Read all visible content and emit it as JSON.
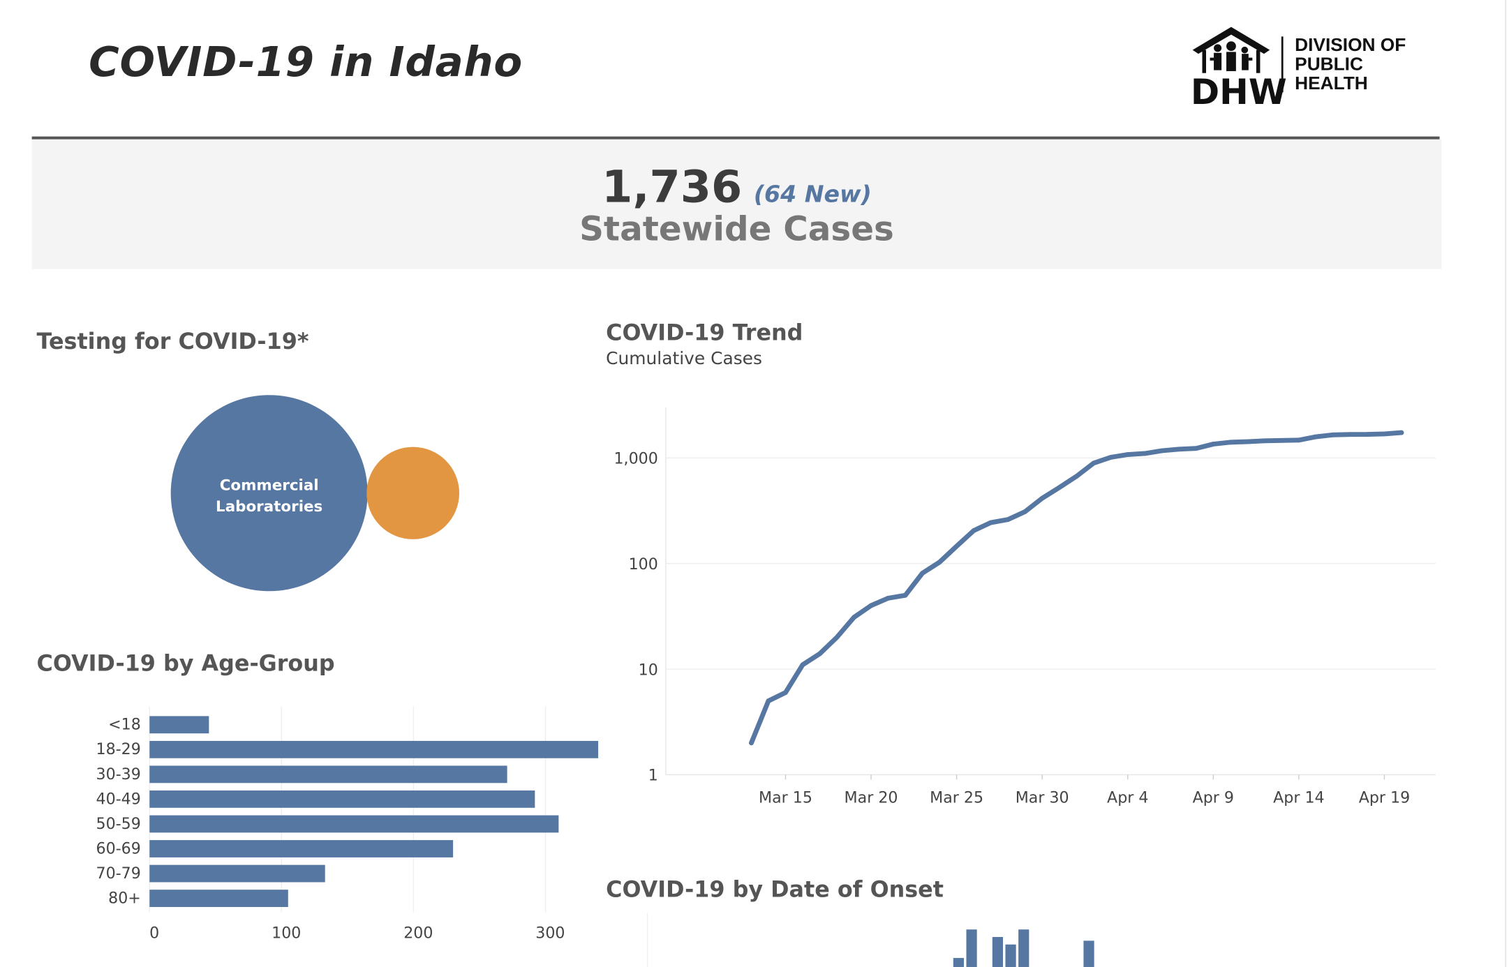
{
  "header": {
    "title": "COVID-19 in Idaho",
    "logo": {
      "initials": "DHW",
      "lines": [
        "DIVISION OF",
        "PUBLIC",
        "HEALTH"
      ],
      "icon": "house-with-people-icon"
    }
  },
  "summary": {
    "total_cases": "1,736",
    "new_cases": "(64 New)",
    "label": "Statewide Cases"
  },
  "testing": {
    "title": "Testing for COVID-19*",
    "bubble_label_lines": [
      "Commercial",
      "Laboratories"
    ],
    "colors": {
      "commercial": "#5677a2",
      "state": "#e39642"
    }
  },
  "trend": {
    "title": "COVID-19 Trend",
    "subtitle": "Cumulative Cases"
  },
  "onset": {
    "title": "COVID-19 by Date of Onset"
  },
  "age": {
    "title": "COVID-19 by Age-Group"
  },
  "chart_data": [
    {
      "type": "bar",
      "orientation": "horizontal",
      "title": "COVID-19 by Age-Group",
      "categories": [
        "<18",
        "18-29",
        "30-39",
        "40-49",
        "50-59",
        "60-69",
        "70-79",
        "80+"
      ],
      "values": [
        45,
        342,
        271,
        292,
        310,
        230,
        133,
        105
      ],
      "xlim": [
        0,
        340
      ],
      "xticks": [
        0,
        100,
        200,
        300
      ],
      "xtick_labels": [
        "0",
        "100",
        "200",
        "300"
      ],
      "color": "#5677a2",
      "grid": true
    },
    {
      "type": "line",
      "title": "COVID-19 Trend",
      "subtitle": "Cumulative Cases",
      "yscale": "log",
      "ylim": [
        1,
        3000
      ],
      "yticks": [
        1,
        10,
        100,
        1000
      ],
      "ytick_labels": [
        "1",
        "10",
        "100",
        "1,000"
      ],
      "xlim": [
        "2020-03-08",
        "2020-04-22"
      ],
      "xticks": [
        "2020-03-15",
        "2020-03-20",
        "2020-03-25",
        "2020-03-30",
        "2020-04-04",
        "2020-04-09",
        "2020-04-14",
        "2020-04-19"
      ],
      "xtick_labels": [
        "Mar 15",
        "Mar 20",
        "Mar 25",
        "Mar 30",
        "Apr 4",
        "Apr 9",
        "Apr 14",
        "Apr 19"
      ],
      "color": "#5677a2",
      "x": [
        "2020-03-13",
        "2020-03-14",
        "2020-03-15",
        "2020-03-16",
        "2020-03-17",
        "2020-03-18",
        "2020-03-19",
        "2020-03-20",
        "2020-03-21",
        "2020-03-22",
        "2020-03-23",
        "2020-03-24",
        "2020-03-25",
        "2020-03-26",
        "2020-03-27",
        "2020-03-28",
        "2020-03-29",
        "2020-03-30",
        "2020-03-31",
        "2020-04-01",
        "2020-04-02",
        "2020-04-03",
        "2020-04-04",
        "2020-04-05",
        "2020-04-06",
        "2020-04-07",
        "2020-04-08",
        "2020-04-09",
        "2020-04-10",
        "2020-04-11",
        "2020-04-12",
        "2020-04-13",
        "2020-04-14",
        "2020-04-15",
        "2020-04-16",
        "2020-04-17",
        "2020-04-18",
        "2020-04-19",
        "2020-04-20"
      ],
      "y": [
        2,
        5,
        6,
        11,
        14,
        20,
        31,
        40,
        47,
        50,
        81,
        103,
        146,
        205,
        244,
        261,
        310,
        415,
        525,
        669,
        891,
        1013,
        1077,
        1101,
        1170,
        1210,
        1232,
        1353,
        1407,
        1426,
        1453,
        1464,
        1473,
        1587,
        1655,
        1668,
        1672,
        1691,
        1736
      ]
    },
    {
      "type": "bar",
      "title": "COVID-19 by Date of Onset",
      "partial": true,
      "x_index": [
        0,
        1,
        3,
        4,
        5,
        10
      ],
      "values": [
        12,
        50,
        40,
        30,
        50,
        35
      ],
      "color": "#5677a2"
    }
  ]
}
